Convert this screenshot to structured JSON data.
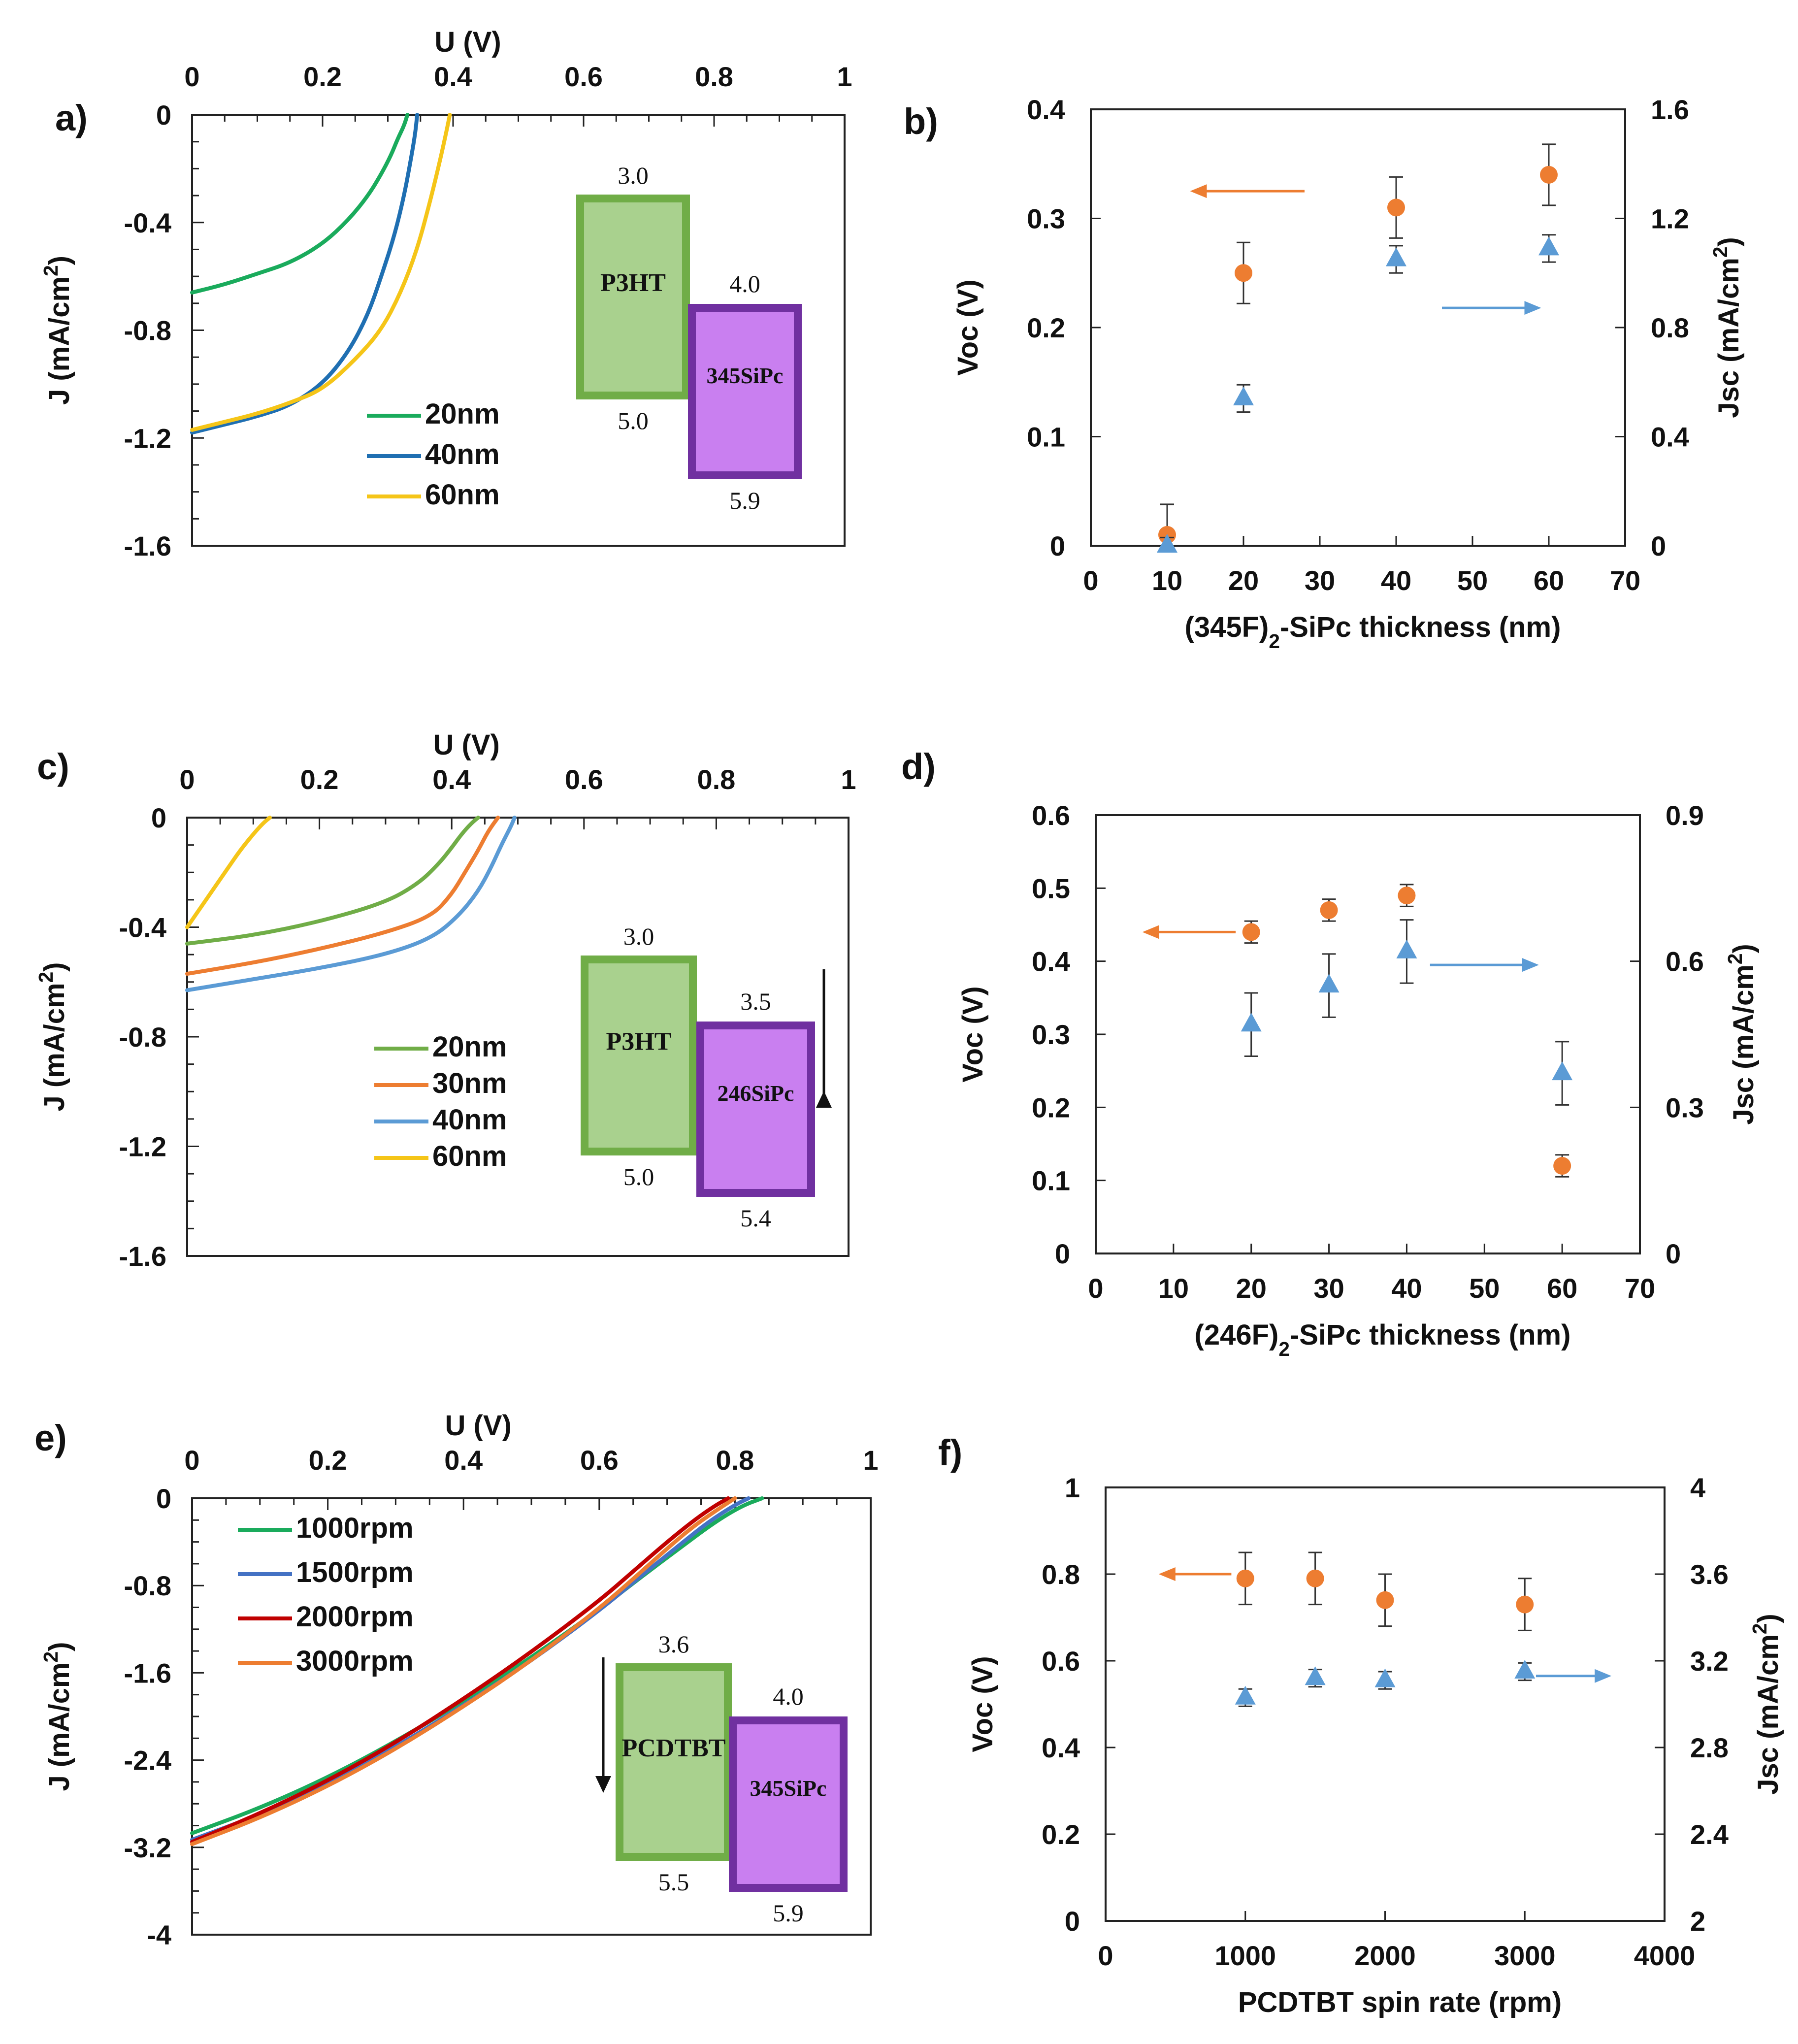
{
  "chart_data": [
    {
      "id": "a",
      "type": "line",
      "panel_label": "a)",
      "xlabel": "U (V)",
      "ylabel": "J (mA/cm²)",
      "xlim": [
        0,
        1
      ],
      "ylim": [
        -1.6,
        0
      ],
      "xticks": [
        0,
        0.2,
        0.4,
        0.6,
        0.8,
        1
      ],
      "xtick_labels": [
        "0",
        "0.2",
        "0.4",
        "0.6",
        "0.8",
        "1"
      ],
      "yticks": [
        0,
        -0.4,
        -0.8,
        -1.2,
        -1.6
      ],
      "ytick_labels": [
        "0",
        "-0.4",
        "-0.8",
        "-1.2",
        "-1.6"
      ],
      "x_minor": 0.05,
      "y_minor": 0.1,
      "series": [
        {
          "name": "20nm",
          "color": "#1aab5c",
          "x": [
            0,
            0.05,
            0.1,
            0.15,
            0.2,
            0.24,
            0.27,
            0.29,
            0.305,
            0.315,
            0.325,
            0.33
          ],
          "y": [
            -0.66,
            -0.63,
            -0.59,
            -0.55,
            -0.48,
            -0.39,
            -0.3,
            -0.22,
            -0.15,
            -0.09,
            -0.04,
            0
          ]
        },
        {
          "name": "40nm",
          "color": "#1f6fb2",
          "x": [
            0,
            0.05,
            0.1,
            0.15,
            0.2,
            0.24,
            0.27,
            0.29,
            0.31,
            0.325,
            0.335,
            0.342,
            0.345
          ],
          "y": [
            -1.18,
            -1.15,
            -1.12,
            -1.08,
            -1.0,
            -0.88,
            -0.74,
            -0.6,
            -0.45,
            -0.3,
            -0.17,
            -0.07,
            0
          ]
        },
        {
          "name": "60nm",
          "color": "#f5c518",
          "x": [
            0,
            0.05,
            0.1,
            0.15,
            0.2,
            0.25,
            0.29,
            0.32,
            0.345,
            0.365,
            0.38,
            0.39,
            0.395
          ],
          "y": [
            -1.17,
            -1.14,
            -1.11,
            -1.07,
            -1.02,
            -0.91,
            -0.8,
            -0.66,
            -0.5,
            -0.32,
            -0.17,
            -0.06,
            0
          ]
        }
      ],
      "legend": [
        {
          "label": "20nm",
          "color": "#1aab5c"
        },
        {
          "label": "40nm",
          "color": "#1f6fb2"
        },
        {
          "label": "60nm",
          "color": "#f5c518"
        }
      ],
      "inset": {
        "donor_name": "P3HT",
        "acceptor_name": "345SiPc",
        "donor_top": "3.0",
        "donor_bottom": "5.0",
        "acceptor_top": "4.0",
        "acceptor_bottom": "5.9",
        "arrow": "none"
      }
    },
    {
      "id": "b",
      "type": "scatter",
      "panel_label": "b)",
      "xlabel": "(345F)₂-SiPc thickness (nm)",
      "ylabel": "Voc (V)",
      "y2label": "Jsc (mA/cm²)",
      "xlim": [
        0,
        70
      ],
      "ylim": [
        0,
        0.4
      ],
      "y2lim": [
        0,
        1.6
      ],
      "xticks": [
        0,
        10,
        20,
        30,
        40,
        50,
        60,
        70
      ],
      "xtick_labels": [
        "0",
        "10",
        "20",
        "30",
        "40",
        "50",
        "60",
        "70"
      ],
      "yticks": [
        0,
        0.1,
        0.2,
        0.3,
        0.4
      ],
      "ytick_labels": [
        "0",
        "0.1",
        "0.2",
        "0.3",
        "0.4"
      ],
      "y2ticks": [
        0,
        0.4,
        0.8,
        1.2,
        1.6
      ],
      "y2tick_labels": [
        "0",
        "0.4",
        "0.8",
        "1.2",
        "1.6"
      ],
      "voc": {
        "color": "#ed7d31",
        "x": [
          10,
          20,
          40,
          60
        ],
        "y": [
          0.01,
          0.25,
          0.31,
          0.34
        ],
        "err": [
          0.028,
          0.028,
          0.028,
          0.028
        ]
      },
      "jsc": {
        "color": "#5b9bd5",
        "x": [
          10,
          20,
          40,
          60
        ],
        "y": [
          0.0,
          0.54,
          1.05,
          1.09
        ],
        "err": [
          0.03,
          0.05,
          0.05,
          0.05
        ]
      },
      "arrows": [
        {
          "axis": "voc",
          "x1": 28,
          "x2": 13,
          "y": 0.325,
          "color": "#ed7d31"
        },
        {
          "axis": "voc",
          "x1": 46,
          "x2": 59,
          "y": 0.218,
          "color": "#5b9bd5"
        }
      ]
    },
    {
      "id": "c",
      "type": "line",
      "panel_label": "c)",
      "xlabel": "U (V)",
      "ylabel": "J (mA/cm²)",
      "xlim": [
        0,
        1
      ],
      "ylim": [
        -1.6,
        0
      ],
      "xticks": [
        0,
        0.2,
        0.4,
        0.6,
        0.8,
        1
      ],
      "xtick_labels": [
        "0",
        "0.2",
        "0.4",
        "0.6",
        "0.8",
        "1"
      ],
      "yticks": [
        0,
        -0.4,
        -0.8,
        -1.2,
        -1.6
      ],
      "ytick_labels": [
        "0",
        "-0.4",
        "-0.8",
        "-1.2",
        "-1.6"
      ],
      "x_minor": 0.05,
      "y_minor": 0.1,
      "series": [
        {
          "name": "20nm",
          "color": "#70ad47",
          "x": [
            0,
            0.1,
            0.2,
            0.3,
            0.35,
            0.38,
            0.4,
            0.415,
            0.43,
            0.44
          ],
          "y": [
            -0.46,
            -0.43,
            -0.38,
            -0.31,
            -0.24,
            -0.17,
            -0.11,
            -0.06,
            -0.02,
            0
          ]
        },
        {
          "name": "30nm",
          "color": "#ed7d31",
          "x": [
            0,
            0.1,
            0.2,
            0.3,
            0.37,
            0.4,
            0.42,
            0.44,
            0.455,
            0.47
          ],
          "y": [
            -0.57,
            -0.53,
            -0.48,
            -0.42,
            -0.36,
            -0.28,
            -0.2,
            -0.12,
            -0.05,
            0
          ]
        },
        {
          "name": "40nm",
          "color": "#5b9bd5",
          "x": [
            0,
            0.1,
            0.2,
            0.3,
            0.37,
            0.41,
            0.44,
            0.46,
            0.475,
            0.49,
            0.495
          ],
          "y": [
            -0.63,
            -0.59,
            -0.55,
            -0.5,
            -0.44,
            -0.36,
            -0.27,
            -0.18,
            -0.1,
            -0.03,
            0
          ]
        },
        {
          "name": "60nm",
          "color": "#f5c518",
          "x": [
            0,
            0.02,
            0.04,
            0.06,
            0.08,
            0.1,
            0.115,
            0.125
          ],
          "y": [
            -0.4,
            -0.33,
            -0.26,
            -0.19,
            -0.12,
            -0.06,
            -0.02,
            0
          ]
        }
      ],
      "legend": [
        {
          "label": "20nm",
          "color": "#70ad47"
        },
        {
          "label": "30nm",
          "color": "#ed7d31"
        },
        {
          "label": "40nm",
          "color": "#5b9bd5"
        },
        {
          "label": "60nm",
          "color": "#f5c518"
        }
      ],
      "inset": {
        "donor_name": "P3HT",
        "acceptor_name": "246SiPc",
        "donor_top": "3.0",
        "donor_bottom": "5.0",
        "acceptor_top": "3.5",
        "acceptor_bottom": "5.4",
        "arrow": "up"
      }
    },
    {
      "id": "d",
      "type": "scatter",
      "panel_label": "d)",
      "xlabel": "(246F)₂-SiPc thickness (nm)",
      "ylabel": "Voc (V)",
      "y2label": "Jsc (mA/cm²)",
      "xlim": [
        0,
        70
      ],
      "ylim": [
        0,
        0.6
      ],
      "y2lim": [
        0,
        0.9
      ],
      "xticks": [
        0,
        10,
        20,
        30,
        40,
        50,
        60,
        70
      ],
      "xtick_labels": [
        "0",
        "10",
        "20",
        "30",
        "40",
        "50",
        "60",
        "70"
      ],
      "yticks": [
        0,
        0.1,
        0.2,
        0.3,
        0.4,
        0.5,
        0.6
      ],
      "ytick_labels": [
        "0",
        "0.1",
        "0.2",
        "0.3",
        "0.4",
        "0.5",
        "0.6"
      ],
      "y2ticks": [
        0,
        0.3,
        0.6,
        0.9
      ],
      "y2tick_labels": [
        "0",
        "0.3",
        "0.6",
        "0.9"
      ],
      "voc": {
        "color": "#ed7d31",
        "x": [
          20,
          30,
          40,
          60
        ],
        "y": [
          0.44,
          0.47,
          0.49,
          0.12
        ],
        "err": [
          0.015,
          0.015,
          0.015,
          0.015
        ]
      },
      "jsc": {
        "color": "#5b9bd5",
        "x": [
          20,
          30,
          40,
          60
        ],
        "y": [
          0.47,
          0.55,
          0.62,
          0.37
        ],
        "err": [
          0.065,
          0.065,
          0.065,
          0.065
        ]
      },
      "arrows": [
        {
          "axis": "voc",
          "x1": 18,
          "x2": 6,
          "y": 0.44,
          "color": "#ed7d31"
        },
        {
          "axis": "voc",
          "x1": 43,
          "x2": 57,
          "y": 0.395,
          "color": "#5b9bd5"
        }
      ]
    },
    {
      "id": "e",
      "type": "line",
      "panel_label": "e)",
      "xlabel": "U (V)",
      "ylabel": "J (mA/cm²)",
      "xlim": [
        0,
        1
      ],
      "ylim": [
        -4,
        0
      ],
      "xticks": [
        0,
        0.2,
        0.4,
        0.6,
        0.8,
        1
      ],
      "xtick_labels": [
        "0",
        "0.2",
        "0.4",
        "0.6",
        "0.8",
        "1"
      ],
      "yticks": [
        0,
        -0.8,
        -1.6,
        -2.4,
        -3.2,
        -4
      ],
      "ytick_labels": [
        "0",
        "-0.8",
        "-1.6",
        "-2.4",
        "-3.2",
        "-4"
      ],
      "x_minor": 0.05,
      "y_minor": 0.2,
      "series": [
        {
          "name": "1000rpm",
          "color": "#1aab5c",
          "x": [
            0,
            0.1,
            0.2,
            0.3,
            0.4,
            0.5,
            0.6,
            0.66,
            0.72,
            0.77,
            0.81,
            0.84
          ],
          "y": [
            -3.07,
            -2.84,
            -2.56,
            -2.23,
            -1.86,
            -1.46,
            -1.02,
            -0.73,
            -0.45,
            -0.22,
            -0.07,
            0
          ]
        },
        {
          "name": "1500rpm",
          "color": "#4472c4",
          "x": [
            0,
            0.1,
            0.2,
            0.3,
            0.4,
            0.5,
            0.6,
            0.66,
            0.72,
            0.76,
            0.8,
            0.82
          ],
          "y": [
            -3.13,
            -2.9,
            -2.62,
            -2.28,
            -1.9,
            -1.49,
            -1.03,
            -0.72,
            -0.42,
            -0.22,
            -0.06,
            0
          ]
        },
        {
          "name": "2000rpm",
          "color": "#c00000",
          "x": [
            0,
            0.1,
            0.2,
            0.3,
            0.4,
            0.5,
            0.6,
            0.65,
            0.7,
            0.74,
            0.77,
            0.79
          ],
          "y": [
            -3.15,
            -2.89,
            -2.59,
            -2.24,
            -1.84,
            -1.41,
            -0.94,
            -0.67,
            -0.4,
            -0.2,
            -0.07,
            0
          ]
        },
        {
          "name": "3000rpm",
          "color": "#ed7d31",
          "x": [
            0,
            0.1,
            0.2,
            0.3,
            0.4,
            0.5,
            0.6,
            0.65,
            0.7,
            0.74,
            0.78,
            0.8
          ],
          "y": [
            -3.17,
            -2.93,
            -2.64,
            -2.3,
            -1.91,
            -1.49,
            -1.01,
            -0.74,
            -0.46,
            -0.25,
            -0.08,
            0
          ]
        }
      ],
      "legend": [
        {
          "label": "1000rpm",
          "color": "#1aab5c"
        },
        {
          "label": "1500rpm",
          "color": "#4472c4"
        },
        {
          "label": "2000rpm",
          "color": "#c00000"
        },
        {
          "label": "3000rpm",
          "color": "#ed7d31"
        }
      ],
      "inset": {
        "donor_name": "PCDTBT",
        "acceptor_name": "345SiPc",
        "donor_top": "3.6",
        "donor_bottom": "5.5",
        "acceptor_top": "4.0",
        "acceptor_bottom": "5.9",
        "arrow": "down"
      }
    },
    {
      "id": "f",
      "type": "scatter",
      "panel_label": "f)",
      "xlabel": "PCDTBT spin rate (rpm)",
      "ylabel": "Voc (V)",
      "y2label": "Jsc (mA/cm²)",
      "xlim": [
        0,
        4000
      ],
      "ylim": [
        0,
        1
      ],
      "y2lim": [
        2,
        4
      ],
      "xticks": [
        0,
        1000,
        2000,
        3000,
        4000
      ],
      "xtick_labels": [
        "0",
        "1000",
        "2000",
        "3000",
        "4000"
      ],
      "yticks": [
        0,
        0.2,
        0.4,
        0.6,
        0.8,
        1
      ],
      "ytick_labels": [
        "0",
        "0.2",
        "0.4",
        "0.6",
        "0.8",
        "1"
      ],
      "y2ticks": [
        2,
        2.4,
        2.8,
        3.2,
        3.6,
        4
      ],
      "y2tick_labels": [
        "2",
        "2.4",
        "2.8",
        "3.2",
        "3.6",
        "4"
      ],
      "voc": {
        "color": "#ed7d31",
        "x": [
          1000,
          1500,
          2000,
          3000
        ],
        "y": [
          0.79,
          0.79,
          0.74,
          0.73
        ],
        "err": [
          0.06,
          0.06,
          0.06,
          0.06
        ]
      },
      "jsc": {
        "color": "#5b9bd5",
        "x": [
          1000,
          1500,
          2000,
          3000
        ],
        "y": [
          3.03,
          3.12,
          3.11,
          3.15
        ],
        "err": [
          0.04,
          0.04,
          0.04,
          0.04
        ]
      },
      "arrows": [
        {
          "axis": "voc",
          "x1": 900,
          "x2": 380,
          "y": 0.8,
          "color": "#ed7d31"
        },
        {
          "axis": "voc",
          "x1": 3080,
          "x2": 3620,
          "y": 0.565,
          "color": "#5b9bd5"
        }
      ]
    }
  ]
}
